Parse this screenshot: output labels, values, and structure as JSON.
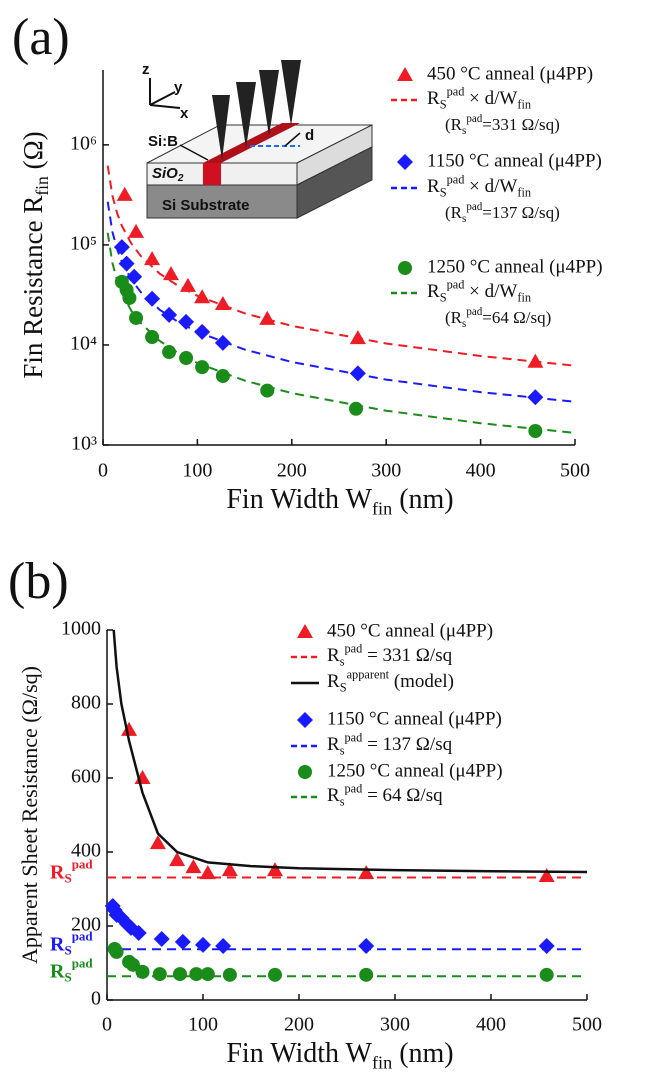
{
  "chart_data": [
    {
      "type": "scatter",
      "panel_label": "(a)",
      "xlabel": [
        "Fin Width W",
        "fin",
        " (nm)"
      ],
      "ylabel": [
        "Fin Resistance R",
        "fin",
        " (Ω)"
      ],
      "xlim": [
        0,
        500
      ],
      "xticks": [
        0,
        100,
        200,
        300,
        400,
        500
      ],
      "ylim": [
        1000,
        5600000
      ],
      "yscale": "log",
      "yticks": [
        {
          "value": 1000,
          "label": "10³"
        },
        {
          "value": 10000,
          "label": "10⁴"
        },
        {
          "value": 100000,
          "label": "10⁵"
        },
        {
          "value": 1000000,
          "label": "10⁶"
        }
      ],
      "annotations": [
        "z",
        "y",
        "x",
        "Si:B",
        "SiO",
        "2",
        "Si Substrate",
        "d"
      ],
      "series": [
        {
          "name": "450 °C anneal (μ4PP)",
          "color": "#ee1c25",
          "style": "marker",
          "marker": "triangle",
          "x": [
            23,
            35,
            52,
            72,
            90,
            105,
            127,
            174,
            270,
            458
          ],
          "values": [
            316000,
            135000,
            72000,
            51000,
            39000,
            30000,
            25700,
            18200,
            11700,
            6800
          ]
        },
        {
          "name": [
            "R",
            "S",
            "pad",
            " × d/W",
            "fin"
          ],
          "note": [
            "(R",
            "s",
            "pad",
            "=331 Ω/sq)"
          ],
          "color": "#ee1c25",
          "style": "dashed",
          "x": [
            5,
            10,
            15,
            20,
            30,
            40,
            60,
            80,
            100,
            150,
            200,
            300,
            400,
            500
          ],
          "values": [
            620000,
            310000,
            206700,
            155000,
            103300,
            77500,
            51700,
            38750,
            31000,
            20700,
            15500,
            10330,
            7750,
            6200
          ]
        },
        {
          "name": "1150 °C anneal (μ4PP)",
          "color": "#1a1aff",
          "style": "marker",
          "marker": "diamond",
          "x": [
            20,
            25,
            33,
            52,
            70,
            88,
            105,
            127,
            270,
            458
          ],
          "values": [
            95000,
            65000,
            48000,
            29000,
            20000,
            17000,
            13500,
            10500,
            5200,
            3000
          ]
        },
        {
          "name": [
            "R",
            "S",
            "pad",
            " × d/W",
            "fin"
          ],
          "note": [
            "(R",
            "s",
            "pad",
            "=137 Ω/sq)"
          ],
          "color": "#1a1aff",
          "style": "dashed",
          "x": [
            5,
            10,
            15,
            20,
            30,
            40,
            60,
            80,
            100,
            150,
            200,
            300,
            400,
            500
          ],
          "values": [
            270000,
            135000,
            90000,
            67500,
            45000,
            33750,
            22500,
            16900,
            13500,
            9000,
            6750,
            4500,
            3380,
            2700
          ]
        },
        {
          "name": "1250 °C anneal (μ4PP)",
          "color": "#1a8c1a",
          "style": "marker",
          "marker": "circle",
          "x": [
            20,
            25,
            28,
            35,
            52,
            70,
            88,
            105,
            127,
            174,
            268,
            458
          ],
          "values": [
            42700,
            35500,
            29500,
            18600,
            12000,
            8500,
            7400,
            6000,
            4900,
            3500,
            2300,
            1380
          ]
        },
        {
          "name": [
            "R",
            "S",
            "pad",
            " × d/W",
            "fin"
          ],
          "note": [
            "(R",
            "s",
            "pad",
            "=64 Ω/sq)"
          ],
          "color": "#1a8c1a",
          "style": "dashed",
          "x": [
            5,
            10,
            15,
            20,
            30,
            40,
            60,
            80,
            100,
            150,
            200,
            300,
            400,
            500
          ],
          "values": [
            132000,
            66000,
            44000,
            33000,
            22000,
            16500,
            11000,
            8250,
            6600,
            4400,
            3300,
            2200,
            1650,
            1320
          ]
        }
      ]
    },
    {
      "type": "scatter",
      "panel_label": "(b)",
      "xlabel": [
        "Fin Width W",
        "fin",
        " (nm)"
      ],
      "ylabel": [
        "Apparent Sheet Resistance (Ω/sq)"
      ],
      "xlim": [
        0,
        500
      ],
      "xticks": [
        0,
        100,
        200,
        300,
        400,
        500
      ],
      "ylim": [
        0,
        1000
      ],
      "yticks": [
        0,
        200,
        400,
        600,
        800,
        1000
      ],
      "series": [
        {
          "name": "450 °C anneal (μ4PP)",
          "color": "#ee1c25",
          "style": "marker",
          "marker": "triangle",
          "x": [
            23,
            37,
            53,
            73,
            90,
            105,
            128,
            175,
            270,
            458
          ],
          "values": [
            730,
            600,
            424,
            378,
            359,
            343,
            351,
            351,
            343,
            335
          ]
        },
        {
          "name": [
            "R",
            "s",
            "pad",
            " = 331 Ω/sq"
          ],
          "annotation": [
            "R",
            "S",
            "pad"
          ],
          "color": "#ee1c25",
          "style": "dashed",
          "x": [
            0,
            500
          ],
          "values": [
            331,
            331
          ]
        },
        {
          "name": [
            "R",
            "S",
            "apparent",
            "  (model)"
          ],
          "color": "#111111",
          "style": "solid",
          "x": [
            7,
            10,
            15,
            23,
            37,
            53,
            73,
            105,
            150,
            200,
            300,
            400,
            500
          ],
          "values": [
            1000,
            900,
            800,
            700,
            560,
            450,
            400,
            372,
            362,
            356,
            351,
            348,
            346
          ]
        },
        {
          "name": "1150 °C anneal (μ4PP)",
          "color": "#1a1aff",
          "style": "marker",
          "marker": "diamond",
          "x": [
            6,
            8,
            10,
            15,
            21,
            25,
            33,
            57,
            79,
            100,
            121,
            270,
            458
          ],
          "values": [
            254,
            243,
            230,
            222,
            205,
            195,
            181,
            165,
            157,
            149,
            146,
            146,
            146
          ]
        },
        {
          "name": [
            "R",
            "s",
            "pad",
            " = 137 Ω/sq"
          ],
          "annotation": [
            "R",
            "S",
            "pad"
          ],
          "color": "#1a1aff",
          "style": "dashed",
          "x": [
            0,
            500
          ],
          "values": [
            137,
            137
          ]
        },
        {
          "name": "1250 °C anneal (μ4PP)",
          "color": "#1a8c1a",
          "style": "marker",
          "marker": "circle",
          "x": [
            8,
            10,
            23,
            27,
            37,
            55,
            76,
            93,
            105,
            128,
            175,
            270,
            458
          ],
          "values": [
            138,
            130,
            103,
            95,
            76,
            70,
            70,
            70,
            70,
            68,
            68,
            68,
            68
          ]
        },
        {
          "name": [
            "R",
            "s",
            "pad",
            " = 64 Ω/sq"
          ],
          "annotation": [
            "R",
            "S",
            "pad"
          ],
          "color": "#1a8c1a",
          "style": "dashed",
          "x": [
            0,
            500
          ],
          "values": [
            64,
            64
          ]
        }
      ]
    }
  ]
}
